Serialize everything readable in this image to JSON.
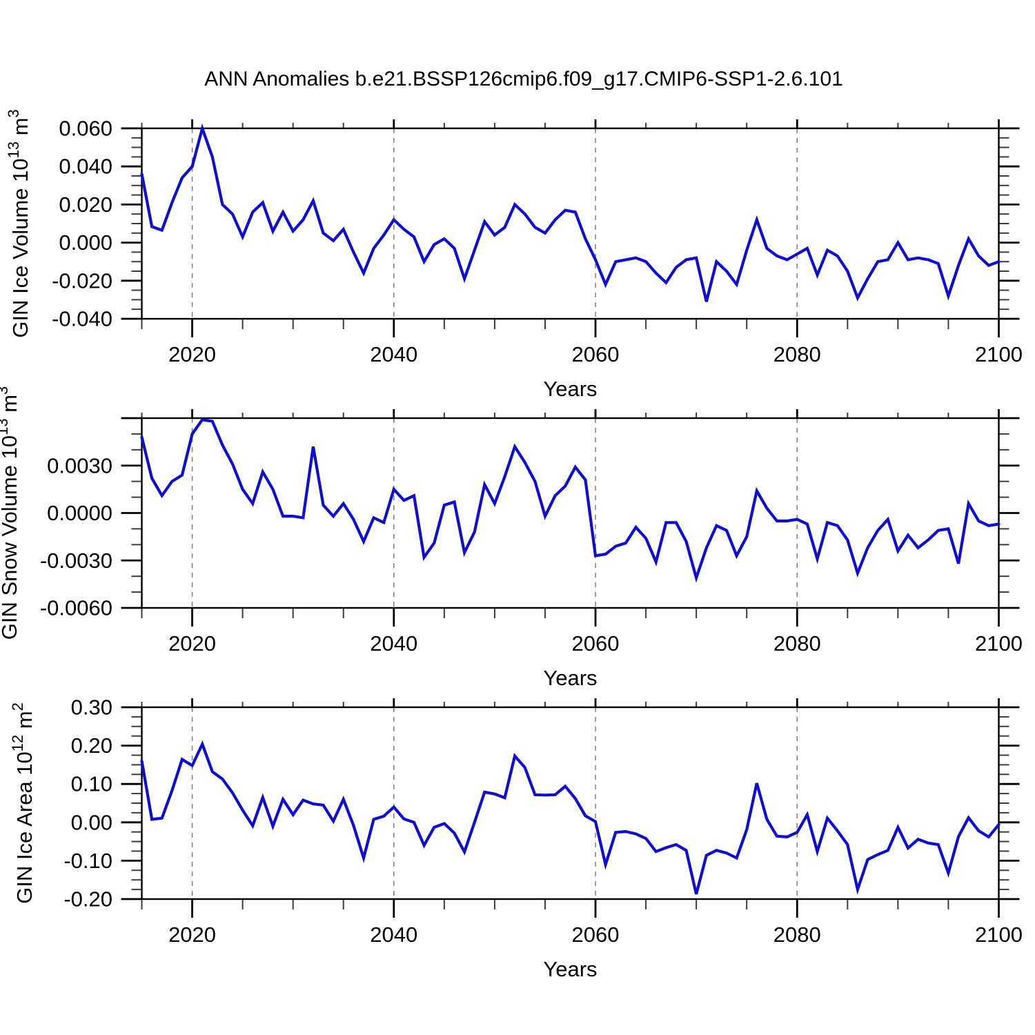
{
  "title": "ANN Anomalies b.e21.BSSP126cmip6.f09_g17.CMIP6-SSP1-2.6.101",
  "colors": {
    "line": "#0d0dd6",
    "axis": "#000000",
    "minor_tick": "#3c3c3c",
    "grid": "#7d7d7d",
    "background": "#ffffff"
  },
  "x_axis": {
    "label": "Years",
    "xlim": [
      2015,
      2100
    ],
    "major_ticks": [
      2020,
      2040,
      2060,
      2080,
      2100
    ],
    "major_tick_labels": [
      "2020",
      "2040",
      "2060",
      "2080",
      "2100"
    ],
    "minor_step": 5,
    "gridline_years": [
      2020,
      2040,
      2060,
      2080
    ]
  },
  "chart_data": [
    {
      "type": "line",
      "name": "gin-ice-volume",
      "ylabel_plain": "GIN Ice Volume 10^13 m^3",
      "ylabel_segments": [
        {
          "t": "GIN Ice Volume 10"
        },
        {
          "t": "13",
          "sup": true
        },
        {
          "t": " m"
        },
        {
          "t": "3",
          "sup": true
        }
      ],
      "xlabel": "Years",
      "ylim": [
        -0.04,
        0.06
      ],
      "yticks": [
        {
          "v": 0.06,
          "label": "0.060"
        },
        {
          "v": 0.04,
          "label": "0.040"
        },
        {
          "v": 0.02,
          "label": "0.020"
        },
        {
          "v": 0.0,
          "label": "0.000"
        },
        {
          "v": -0.02,
          "label": "-0.020"
        },
        {
          "v": -0.04,
          "label": "-0.040"
        }
      ],
      "extra_major_yticks": [],
      "yminor_step": 0.005,
      "x_start": 2015,
      "x_step": 1,
      "values": [
        0.036,
        0.0084,
        0.0065,
        0.021,
        0.034,
        0.04,
        0.06,
        0.045,
        0.02,
        0.015,
        0.003,
        0.016,
        0.021,
        0.006,
        0.016,
        0.006,
        0.012,
        0.022,
        0.005,
        0.001,
        0.007,
        -0.005,
        -0.016,
        -0.003,
        0.004,
        0.012,
        0.007,
        0.003,
        -0.01,
        -0.001,
        0.002,
        -0.003,
        -0.019,
        -0.004,
        0.011,
        0.004,
        0.008,
        0.02,
        0.015,
        0.008,
        0.005,
        0.012,
        0.017,
        0.016,
        0.002,
        -0.009,
        -0.022,
        -0.01,
        -0.009,
        -0.008,
        -0.01,
        -0.016,
        -0.021,
        -0.013,
        -0.009,
        -0.008,
        -0.031,
        -0.01,
        -0.015,
        -0.022,
        -0.004,
        0.012,
        -0.003,
        -0.007,
        -0.009,
        -0.006,
        -0.003,
        -0.017,
        -0.004,
        -0.007,
        -0.015,
        -0.029,
        -0.019,
        -0.01,
        -0.009,
        0.0,
        -0.009,
        -0.008,
        -0.009,
        -0.011,
        -0.028,
        -0.012,
        0.002,
        -0.007,
        -0.012,
        -0.01
      ]
    },
    {
      "type": "line",
      "name": "gin-snow-volume",
      "ylabel_plain": "GIN Snow Volume 10^13 m^3",
      "ylabel_segments": [
        {
          "t": "GIN Snow Volume 10"
        },
        {
          "t": "13",
          "sup": true
        },
        {
          "t": " m"
        },
        {
          "t": "3",
          "sup": true
        }
      ],
      "xlabel": "Years",
      "ylim": [
        -0.006,
        0.006
      ],
      "yticks": [
        {
          "v": 0.003,
          "label": "0.0030"
        },
        {
          "v": 0.0,
          "label": "0.0000"
        },
        {
          "v": -0.003,
          "label": "-0.0030"
        },
        {
          "v": -0.006,
          "label": "-0.0060"
        }
      ],
      "extra_major_yticks": [
        0.006
      ],
      "yminor_step": 0.001,
      "x_start": 2015,
      "x_step": 1,
      "values": [
        0.0048,
        0.0022,
        0.0011,
        0.002,
        0.0024,
        0.005,
        0.0059,
        0.0058,
        0.0043,
        0.0031,
        0.0015,
        0.0006,
        0.0026,
        0.0015,
        -0.0002,
        -0.0002,
        -0.0003,
        0.0042,
        0.0005,
        -0.0002,
        0.0006,
        -0.0004,
        -0.0018,
        -0.0003,
        -0.0006,
        0.0015,
        0.0008,
        0.0011,
        -0.0028,
        -0.0019,
        0.0005,
        0.0007,
        -0.0025,
        -0.0012,
        0.0018,
        0.0006,
        0.0023,
        0.0042,
        0.0032,
        0.002,
        -0.0002,
        0.0011,
        0.0017,
        0.0029,
        0.0021,
        -0.0027,
        -0.0026,
        -0.0021,
        -0.0019,
        -0.0009,
        -0.0016,
        -0.0031,
        -0.0006,
        -0.0006,
        -0.0018,
        -0.0041,
        -0.0022,
        -0.0008,
        -0.0011,
        -0.0027,
        -0.0015,
        0.0014,
        0.0003,
        -0.0005,
        -0.0005,
        -0.0004,
        -0.0007,
        -0.0029,
        -0.0006,
        -0.0008,
        -0.0017,
        -0.0038,
        -0.0022,
        -0.0011,
        -0.0004,
        -0.0024,
        -0.0014,
        -0.0022,
        -0.0017,
        -0.0011,
        -0.001,
        -0.0032,
        0.0006,
        -0.0005,
        -0.0008,
        -0.0007
      ]
    },
    {
      "type": "line",
      "name": "gin-ice-area",
      "ylabel_plain": "GIN Ice Area 10^12 m^2",
      "ylabel_segments": [
        {
          "t": "GIN Ice Area 10"
        },
        {
          "t": "12",
          "sup": true
        },
        {
          "t": " m"
        },
        {
          "t": "2",
          "sup": true
        }
      ],
      "xlabel": "Years",
      "ylim": [
        -0.2,
        0.3
      ],
      "yticks": [
        {
          "v": 0.3,
          "label": "0.30"
        },
        {
          "v": 0.2,
          "label": "0.20"
        },
        {
          "v": 0.1,
          "label": "0.10"
        },
        {
          "v": 0.0,
          "label": "0.00"
        },
        {
          "v": -0.1,
          "label": "-0.10"
        },
        {
          "v": -0.2,
          "label": "-0.20"
        }
      ],
      "extra_major_yticks": [],
      "yminor_step": 0.025,
      "x_start": 2015,
      "x_step": 1,
      "values": [
        0.16,
        0.008,
        0.011,
        0.083,
        0.164,
        0.148,
        0.204,
        0.132,
        0.113,
        0.077,
        0.032,
        -0.009,
        0.065,
        -0.01,
        0.06,
        0.02,
        0.058,
        0.048,
        0.045,
        0.003,
        0.06,
        -0.008,
        -0.093,
        0.008,
        0.016,
        0.04,
        0.009,
        0.0,
        -0.06,
        -0.013,
        -0.003,
        -0.028,
        -0.077,
        0.0,
        0.079,
        0.074,
        0.064,
        0.173,
        0.143,
        0.072,
        0.071,
        0.072,
        0.094,
        0.062,
        0.017,
        0.002,
        -0.11,
        -0.026,
        -0.024,
        -0.03,
        -0.042,
        -0.076,
        -0.066,
        -0.058,
        -0.073,
        -0.187,
        -0.086,
        -0.073,
        -0.08,
        -0.093,
        -0.019,
        0.102,
        0.008,
        -0.036,
        -0.038,
        -0.026,
        0.02,
        -0.076,
        0.011,
        -0.022,
        -0.058,
        -0.175,
        -0.097,
        -0.084,
        -0.073,
        -0.013,
        -0.067,
        -0.044,
        -0.054,
        -0.058,
        -0.132,
        -0.037,
        0.012,
        -0.022,
        -0.038,
        -0.006
      ]
    }
  ]
}
